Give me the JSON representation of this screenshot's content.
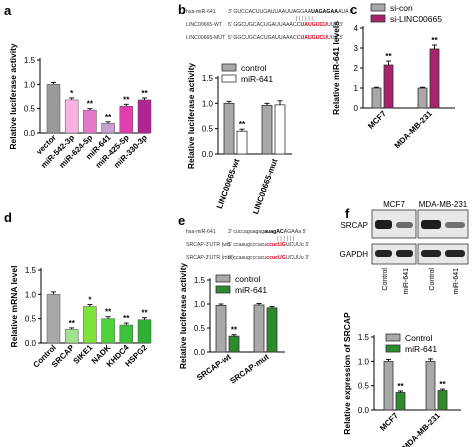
{
  "panel_letters": [
    "a",
    "b",
    "c",
    "d",
    "e",
    "f"
  ],
  "sequences": {
    "b": [
      {
        "label": "hsa-miR-641",
        "seq": "3'  GUCCACUUGAUUAAUUAGGAAUAGAGAAAUA 5'"
      },
      {
        "label": "LINC00665-WT",
        "seq": "5'  GGCUGCACUGAUUAAACCUAUGUCUUUA 3'"
      },
      {
        "label": "LINC00665-MUT",
        "seq": "5'  GGCUGCACUGAUUAAACCUAUGUCUUUA 3'"
      }
    ],
    "e": [
      {
        "label": "hsa-miR-641",
        "seq": "3'  cuccaguagagauagACAGAAa 5'"
      },
      {
        "label": "SRCAP-3'UTR (wt)",
        "seq": "5'  ccaaugcccacuccucUGUCUUu 3'"
      },
      {
        "label": "SRCAP-3'UTR (mut)",
        "seq": "5'  ccaaugcccacuccucUGUCUUu 3'"
      }
    ]
  },
  "western": {
    "col_titles": [
      "MCF7",
      "MDA-MB-231"
    ],
    "rows": [
      "SRCAP",
      "GAPDH"
    ],
    "lanes": [
      "Control",
      "miR-641",
      "Control",
      "miR-641"
    ]
  },
  "chart_data": [
    {
      "id": "a",
      "type": "bar",
      "categories": [
        "vector",
        "miR-542-3p",
        "miR-624-5p",
        "miR-641",
        "miR-425-5p",
        "miR-330-3p"
      ],
      "values": [
        1.0,
        0.68,
        0.47,
        0.2,
        0.55,
        0.68
      ],
      "errors": [
        0.04,
        0.04,
        0.03,
        0.03,
        0.04,
        0.04
      ],
      "significance": [
        "",
        "*",
        "**",
        "**",
        "**",
        "**"
      ],
      "colors": [
        "#9a9a9a",
        "#f7b2e2",
        "#e479c9",
        "#c9a0d2",
        "#e13fae",
        "#b02593"
      ],
      "ylabel": "Relative luciferase activity",
      "ylim": [
        0,
        1.5
      ],
      "yticks": [
        0.0,
        0.5,
        1.0,
        1.5
      ]
    },
    {
      "id": "b",
      "type": "bar",
      "categories": [
        "LINC00665-wt",
        "LINC00665-mut"
      ],
      "series": [
        {
          "name": "control",
          "values": [
            1.0,
            0.96
          ],
          "errors": [
            0.04,
            0.04
          ],
          "color": "#a8a8a8"
        },
        {
          "name": "miR-641",
          "values": [
            0.45,
            0.97
          ],
          "errors": [
            0.04,
            0.08
          ],
          "color": "#ffffff"
        }
      ],
      "significance": [
        "**",
        ""
      ],
      "ylabel": "Relative luciferase activity",
      "ylim": [
        0,
        1.5
      ],
      "yticks": [
        0.0,
        0.5,
        1.0,
        1.5
      ]
    },
    {
      "id": "c",
      "type": "bar",
      "categories": [
        "MCF7",
        "MDA-MB-231"
      ],
      "series": [
        {
          "name": "si-con",
          "values": [
            1.0,
            1.0
          ],
          "errors": [
            0.04,
            0.04
          ],
          "color": "#a8a8a8"
        },
        {
          "name": "si-LINC00665",
          "values": [
            2.15,
            2.95
          ],
          "errors": [
            0.2,
            0.2
          ],
          "color": "#a8236e"
        }
      ],
      "significance": [
        "**",
        "**"
      ],
      "ylabel": "Relative miR-641 levels",
      "ylim": [
        0,
        4
      ],
      "yticks": [
        0,
        1,
        2,
        3,
        4
      ]
    },
    {
      "id": "d",
      "type": "bar",
      "categories": [
        "Control",
        "SRCAP",
        "SIKE1",
        "NADK",
        "KHDC4",
        "HSPG2"
      ],
      "values": [
        1.0,
        0.28,
        0.75,
        0.5,
        0.37,
        0.48
      ],
      "errors": [
        0.05,
        0.03,
        0.04,
        0.04,
        0.04,
        0.04
      ],
      "significance": [
        "",
        "**",
        "*",
        "**",
        "**",
        "**"
      ],
      "colors": [
        "#a8a8a8",
        "#a2e28f",
        "#7fe23a",
        "#4fd13c",
        "#3ec23d",
        "#2fb033"
      ],
      "ylabel": "Relative mRNA level",
      "ylim": [
        0,
        1.5
      ],
      "yticks": [
        0.0,
        0.5,
        1.0,
        1.5
      ]
    },
    {
      "id": "e",
      "type": "bar",
      "categories": [
        "SRCAP-wt",
        "SRCAP-mut"
      ],
      "series": [
        {
          "name": "control",
          "values": [
            0.97,
            0.98
          ],
          "errors": [
            0.03,
            0.03
          ],
          "color": "#a8a8a8"
        },
        {
          "name": "miR-641",
          "values": [
            0.33,
            0.92
          ],
          "errors": [
            0.03,
            0.03
          ],
          "color": "#2d8a2d"
        }
      ],
      "significance": [
        "**",
        ""
      ],
      "ylabel": "Relative luciferase activity",
      "ylim": [
        0,
        1.5
      ],
      "yticks": [
        0.0,
        0.5,
        1.0,
        1.5
      ]
    },
    {
      "id": "f",
      "type": "bar",
      "categories": [
        "MCF7",
        "MDA-MB-231"
      ],
      "series": [
        {
          "name": "Control",
          "values": [
            1.0,
            1.0
          ],
          "errors": [
            0.04,
            0.05
          ],
          "color": "#a8a8a8"
        },
        {
          "name": "miR-641",
          "values": [
            0.36,
            0.4
          ],
          "errors": [
            0.03,
            0.03
          ],
          "color": "#2d8a2d"
        }
      ],
      "significance": [
        "**",
        "**"
      ],
      "ylabel": "Relative expression of SRCAP",
      "ylim": [
        0,
        1.5
      ],
      "yticks": [
        0.0,
        0.5,
        1.0,
        1.5
      ]
    }
  ]
}
